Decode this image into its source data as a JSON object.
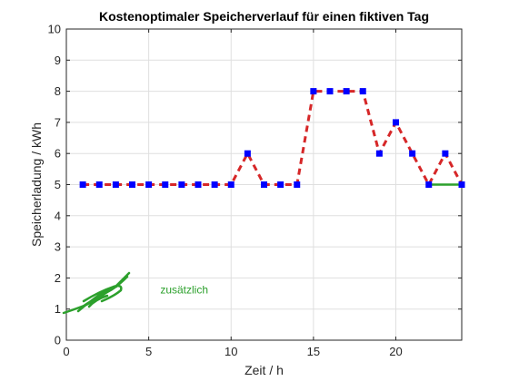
{
  "chart_data": {
    "type": "line",
    "title": "Kostenoptimaler Speicherverlauf für einen fiktiven Tag",
    "xlabel": "Zeit / h",
    "ylabel": "Speicherladung / kWh",
    "xlim": [
      0,
      24
    ],
    "ylim": [
      0,
      10
    ],
    "xticks": [
      0,
      5,
      10,
      15,
      20
    ],
    "yticks": [
      0,
      1,
      2,
      3,
      4,
      5,
      6,
      7,
      8,
      9,
      10
    ],
    "grid": true,
    "series": [
      {
        "style": "dashed-line-with-square-markers",
        "line_color": "#d62728",
        "marker_color": "#0000ff",
        "x": [
          1,
          2,
          3,
          4,
          5,
          6,
          7,
          8,
          9,
          10,
          11,
          12,
          13,
          14,
          15,
          16,
          17,
          18,
          19,
          20,
          21,
          22,
          23,
          24
        ],
        "y": [
          5,
          5,
          5,
          5,
          5,
          5,
          5,
          5,
          5,
          5,
          6,
          5,
          5,
          5,
          8,
          8,
          8,
          8,
          6,
          7,
          6,
          5,
          6,
          5
        ]
      },
      {
        "style": "solid-line",
        "color": "#2ca02c",
        "x": [
          22,
          23,
          24
        ],
        "y": [
          5,
          5,
          5
        ]
      }
    ],
    "annotation": {
      "text": "zusätzlich",
      "color": "#2ca02c"
    }
  }
}
